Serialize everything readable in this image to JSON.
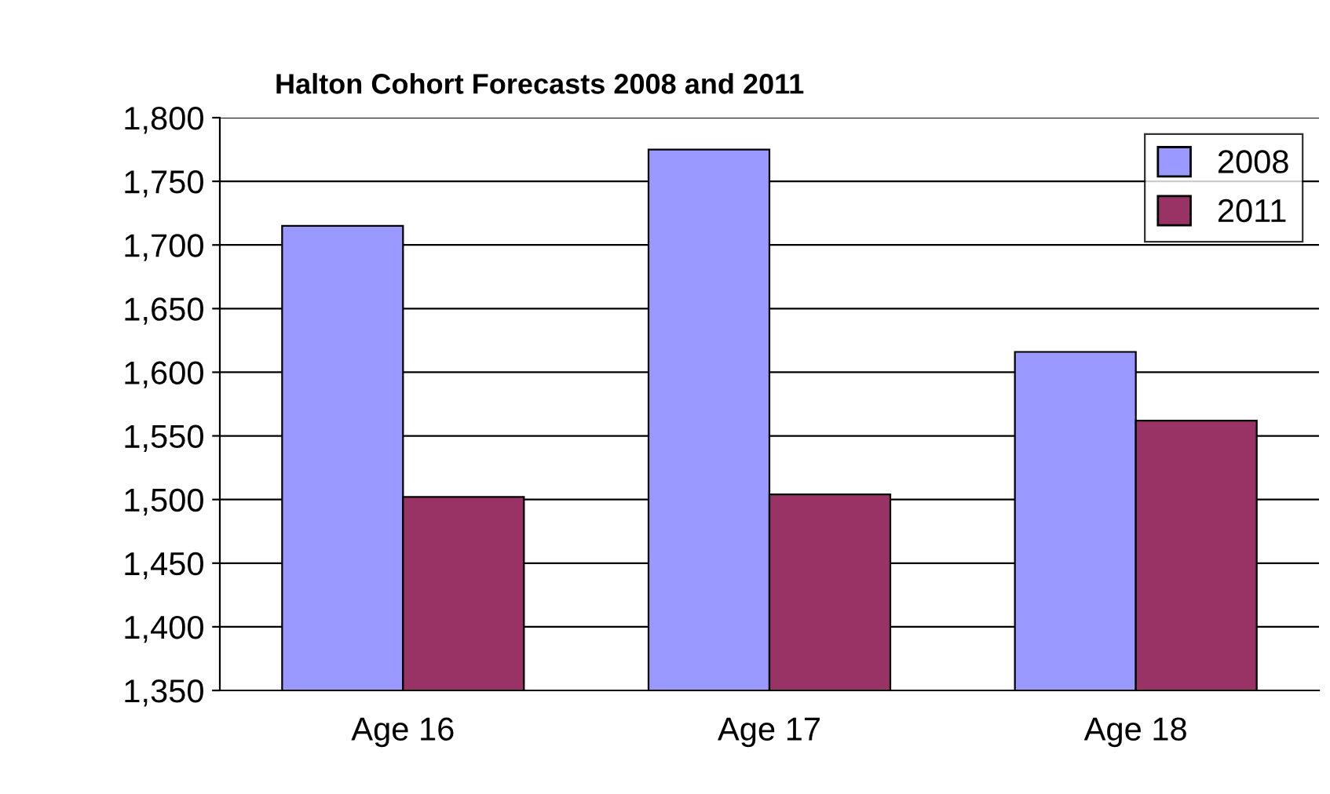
{
  "chart_data": {
    "type": "bar",
    "title": "Halton Cohort Forecasts 2008 and 2011",
    "categories": [
      "Age 16",
      "Age 17",
      "Age 18"
    ],
    "series": [
      {
        "name": "2008",
        "color": "#9999ff",
        "values": [
          1715,
          1775,
          1616
        ]
      },
      {
        "name": "2011",
        "color": "#993366",
        "values": [
          1502,
          1504,
          1562
        ]
      }
    ],
    "ylim": [
      1350,
      1800
    ],
    "yticks": [
      {
        "value": 1350,
        "label": "1,350"
      },
      {
        "value": 1400,
        "label": "1,400"
      },
      {
        "value": 1450,
        "label": "1,450"
      },
      {
        "value": 1500,
        "label": "1,500"
      },
      {
        "value": 1550,
        "label": "1,550"
      },
      {
        "value": 1600,
        "label": "1,600"
      },
      {
        "value": 1650,
        "label": "1,650"
      },
      {
        "value": 1700,
        "label": "1,700"
      },
      {
        "value": 1750,
        "label": "1,750"
      },
      {
        "value": 1800,
        "label": "1,800"
      }
    ],
    "grid": "y",
    "legend": "top right"
  }
}
